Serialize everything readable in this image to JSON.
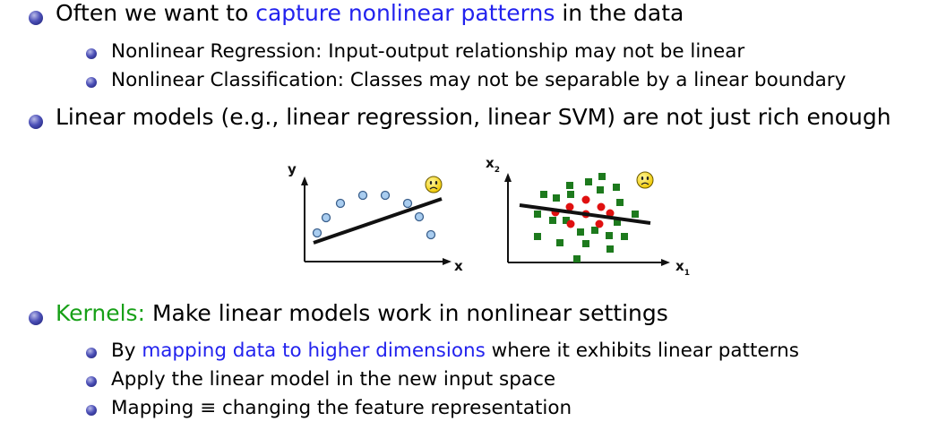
{
  "bullets": [
    {
      "level": 1,
      "segments": [
        {
          "text": "Often we want to ",
          "style": "normal"
        },
        {
          "text": "capture nonlinear patterns",
          "style": "blue"
        },
        {
          "text": " in the data",
          "style": "normal"
        }
      ]
    },
    {
      "level": 2,
      "segments": [
        {
          "text": "Nonlinear Regression: Input-output relationship may not be linear",
          "style": "normal"
        }
      ]
    },
    {
      "level": 2,
      "segments": [
        {
          "text": "Nonlinear Classification: Classes may not be separable by a linear boundary",
          "style": "normal"
        }
      ]
    },
    {
      "level": 1,
      "segments": [
        {
          "text": "Linear models (e.g., linear regression, linear SVM) are not just rich enough",
          "style": "normal"
        }
      ]
    },
    {
      "level": 1,
      "segments": [
        {
          "text": "Kernels:",
          "style": "green"
        },
        {
          "text": " Make linear models work in nonlinear settings",
          "style": "normal"
        }
      ]
    },
    {
      "level": 2,
      "segments": [
        {
          "text": "By ",
          "style": "normal"
        },
        {
          "text": "mapping data to higher dimensions",
          "style": "blue"
        },
        {
          "text": " where it exhibits linear patterns",
          "style": "normal"
        }
      ]
    },
    {
      "level": 2,
      "segments": [
        {
          "text": "Apply the linear model in the new input space",
          "style": "normal"
        }
      ]
    },
    {
      "level": 2,
      "segments": [
        {
          "text": "Mapping ≡ changing the feature representation",
          "style": "normal"
        }
      ]
    }
  ],
  "figure_left": {
    "x_label": "x",
    "y_label": "y",
    "emoji_icon": "sad-face-icon",
    "point_color": "#a9cdf0"
  },
  "figure_right": {
    "x_label": "x",
    "x_subscript": "1",
    "y_label": "x",
    "y_subscript": "2",
    "emoji_icon": "sad-face-icon",
    "class_a_color": "#1d7a1d",
    "class_b_color": "#e01010"
  },
  "colors": {
    "blue_text": "#2222ee",
    "green_text": "#17a017",
    "bullet": "#3b3fa8"
  }
}
